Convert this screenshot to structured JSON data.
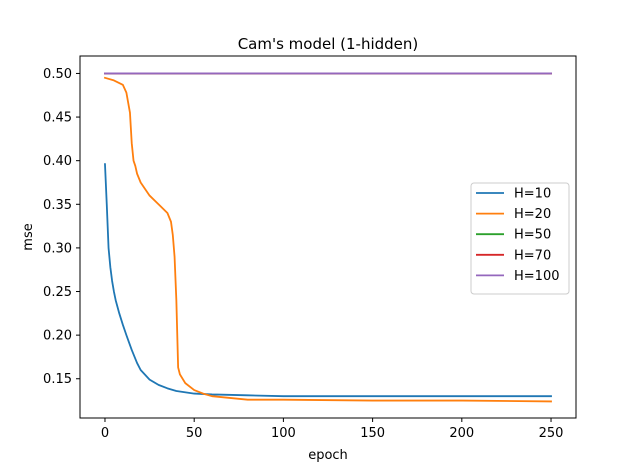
{
  "chart_data": {
    "type": "line",
    "title": "Cam's model (1-hidden)",
    "xlabel": "epoch",
    "ylabel": "mse",
    "xlim": [
      -14,
      264
    ],
    "ylim": [
      0.105,
      0.52
    ],
    "xticks": [
      0,
      50,
      100,
      150,
      200,
      250
    ],
    "xtick_labels": [
      "0",
      "50",
      "100",
      "150",
      "200",
      "250"
    ],
    "yticks": [
      0.15,
      0.2,
      0.25,
      0.3,
      0.35,
      0.4,
      0.45,
      0.5
    ],
    "ytick_labels": [
      "0.15",
      "0.20",
      "0.25",
      "0.30",
      "0.35",
      "0.40",
      "0.45",
      "0.50"
    ],
    "grid": false,
    "legend_position": "center-right",
    "series": [
      {
        "name": "H=10",
        "color": "#1f77b4",
        "x": [
          0,
          1,
          2,
          3,
          4,
          5,
          6,
          8,
          10,
          12,
          15,
          18,
          20,
          25,
          30,
          35,
          40,
          50,
          60,
          80,
          100,
          150,
          200,
          250
        ],
        "y": [
          0.396,
          0.35,
          0.3,
          0.278,
          0.262,
          0.25,
          0.24,
          0.225,
          0.212,
          0.2,
          0.183,
          0.168,
          0.16,
          0.149,
          0.143,
          0.139,
          0.136,
          0.133,
          0.132,
          0.131,
          0.13,
          0.13,
          0.13,
          0.13
        ]
      },
      {
        "name": "H=20",
        "color": "#ff7f0e",
        "x": [
          0,
          5,
          10,
          12,
          14,
          15,
          16,
          17,
          18,
          20,
          25,
          30,
          35,
          37,
          38,
          39,
          40,
          41,
          42,
          45,
          50,
          55,
          60,
          70,
          80,
          100,
          150,
          200,
          250
        ],
        "y": [
          0.495,
          0.492,
          0.487,
          0.478,
          0.455,
          0.42,
          0.4,
          0.394,
          0.385,
          0.375,
          0.36,
          0.35,
          0.34,
          0.33,
          0.315,
          0.29,
          0.24,
          0.163,
          0.155,
          0.145,
          0.137,
          0.133,
          0.13,
          0.128,
          0.126,
          0.126,
          0.125,
          0.125,
          0.124
        ]
      },
      {
        "name": "H=50",
        "color": "#2ca02c",
        "x": [
          0,
          250
        ],
        "y": [
          0.5,
          0.5
        ]
      },
      {
        "name": "H=70",
        "color": "#d62728",
        "x": [
          0,
          250
        ],
        "y": [
          0.5,
          0.5
        ]
      },
      {
        "name": "H=100",
        "color": "#9467bd",
        "x": [
          0,
          250
        ],
        "y": [
          0.5,
          0.5
        ]
      }
    ]
  }
}
